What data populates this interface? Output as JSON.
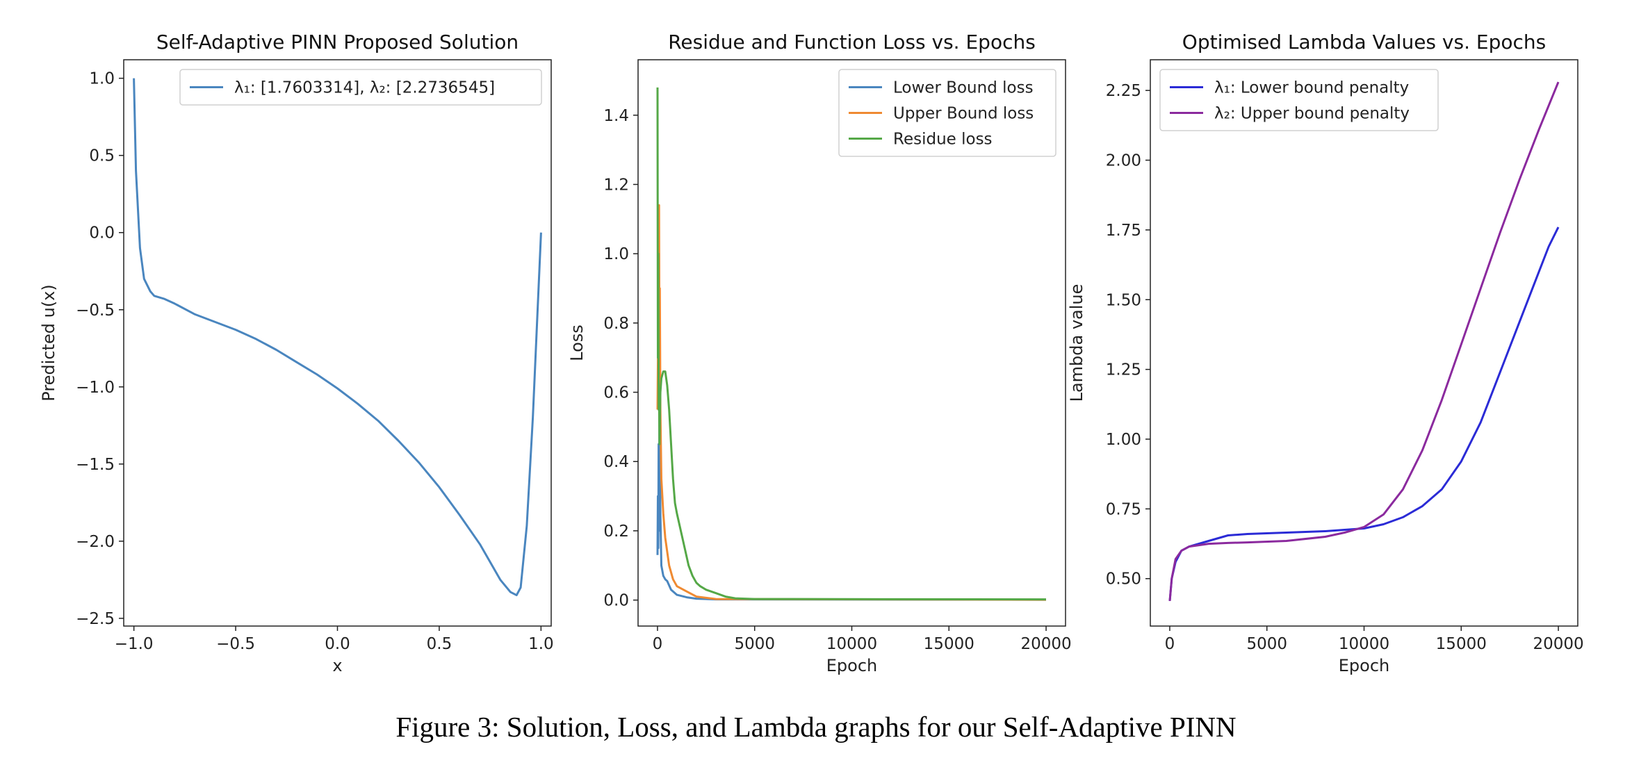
{
  "caption": "Figure 3:  Solution, Loss, and Lambda  graphs for our Self-Adaptive PINN",
  "chart_data": [
    {
      "type": "line",
      "title": "Self-Adaptive PINN Proposed Solution",
      "xlabel": "x",
      "ylabel": "Predicted u(x)",
      "xlim": [
        -1.05,
        1.05
      ],
      "ylim": [
        -2.55,
        1.12
      ],
      "xticks": [
        -1.0,
        -0.5,
        0.0,
        0.5,
        1.0
      ],
      "xtick_labels": [
        "−1.0",
        "−0.5",
        "0.0",
        "0.5",
        "1.0"
      ],
      "yticks": [
        1.0,
        0.5,
        0.0,
        -0.5,
        -1.0,
        -1.5,
        -2.0,
        -2.5
      ],
      "ytick_labels": [
        "1.0",
        "0.5",
        "0.0",
        "−0.5",
        "−1.0",
        "−1.5",
        "−2.0",
        "−2.5"
      ],
      "legend_position": "top-right",
      "series": [
        {
          "name": "λ₁: [1.7603314], λ₂: [2.2736545]",
          "color": "#4a86bf",
          "x": [
            -1.0,
            -0.99,
            -0.97,
            -0.95,
            -0.92,
            -0.9,
            -0.85,
            -0.8,
            -0.7,
            -0.6,
            -0.5,
            -0.4,
            -0.3,
            -0.2,
            -0.1,
            0.0,
            0.1,
            0.2,
            0.3,
            0.4,
            0.5,
            0.6,
            0.7,
            0.8,
            0.85,
            0.88,
            0.9,
            0.93,
            0.96,
            0.98,
            1.0
          ],
          "y": [
            1.0,
            0.4,
            -0.1,
            -0.3,
            -0.38,
            -0.41,
            -0.43,
            -0.46,
            -0.53,
            -0.58,
            -0.63,
            -0.69,
            -0.76,
            -0.84,
            -0.92,
            -1.01,
            -1.11,
            -1.22,
            -1.35,
            -1.49,
            -1.65,
            -1.83,
            -2.02,
            -2.25,
            -2.33,
            -2.35,
            -2.3,
            -1.9,
            -1.2,
            -0.6,
            0.0
          ]
        }
      ]
    },
    {
      "type": "line",
      "title": "Residue and Function Loss vs. Epochs",
      "xlabel": "Epoch",
      "ylabel": "Loss",
      "xlim": [
        -1000,
        21000
      ],
      "ylim": [
        -0.075,
        1.56
      ],
      "xticks": [
        0,
        5000,
        10000,
        15000,
        20000
      ],
      "xtick_labels": [
        "0",
        "5000",
        "10000",
        "15000",
        "20000"
      ],
      "yticks": [
        0.0,
        0.2,
        0.4,
        0.6,
        0.8,
        1.0,
        1.2,
        1.4
      ],
      "ytick_labels": [
        "0.0",
        "0.2",
        "0.4",
        "0.6",
        "0.8",
        "1.0",
        "1.2",
        "1.4"
      ],
      "legend_position": "top-right",
      "series": [
        {
          "name": "Lower Bound loss",
          "color": "#4a86bf",
          "x": [
            0,
            20,
            40,
            60,
            80,
            100,
            150,
            200,
            300,
            400,
            500,
            700,
            1000,
            1500,
            2000,
            3000,
            20000
          ],
          "y": [
            0.13,
            0.3,
            0.15,
            0.45,
            0.2,
            0.55,
            0.25,
            0.1,
            0.07,
            0.06,
            0.055,
            0.03,
            0.015,
            0.008,
            0.004,
            0.002,
            0.001
          ]
        },
        {
          "name": "Upper Bound loss",
          "color": "#ef8a32",
          "x": [
            0,
            50,
            80,
            100,
            120,
            150,
            200,
            300,
            400,
            600,
            800,
            1000,
            1500,
            2000,
            3000,
            20000
          ],
          "y": [
            0.55,
            0.9,
            1.14,
            0.7,
            0.9,
            0.55,
            0.35,
            0.25,
            0.18,
            0.1,
            0.06,
            0.04,
            0.025,
            0.01,
            0.003,
            0.001
          ]
        },
        {
          "name": "Residue loss",
          "color": "#55a847",
          "x": [
            0,
            20,
            40,
            60,
            80,
            100,
            150,
            200,
            300,
            400,
            500,
            600,
            700,
            800,
            900,
            1000,
            1200,
            1400,
            1600,
            1800,
            2000,
            2200,
            2500,
            3000,
            3500,
            4000,
            5000,
            20000
          ],
          "y": [
            1.48,
            0.7,
            1.0,
            0.55,
            0.6,
            0.45,
            0.6,
            0.64,
            0.66,
            0.66,
            0.62,
            0.55,
            0.45,
            0.35,
            0.28,
            0.25,
            0.2,
            0.15,
            0.1,
            0.07,
            0.05,
            0.04,
            0.03,
            0.02,
            0.01,
            0.005,
            0.003,
            0.002
          ]
        }
      ]
    },
    {
      "type": "line",
      "title": "Optimised Lambda Values vs. Epochs",
      "xlabel": "Epoch",
      "ylabel": "Lambda value",
      "xlim": [
        -1000,
        21000
      ],
      "ylim": [
        0.33,
        2.36
      ],
      "xticks": [
        0,
        5000,
        10000,
        15000,
        20000
      ],
      "xtick_labels": [
        "0",
        "5000",
        "10000",
        "15000",
        "20000"
      ],
      "yticks": [
        0.5,
        0.75,
        1.0,
        1.25,
        1.5,
        1.75,
        2.0,
        2.25
      ],
      "ytick_labels": [
        "0.50",
        "0.75",
        "1.00",
        "1.25",
        "1.50",
        "1.75",
        "2.00",
        "2.25"
      ],
      "legend_position": "top-left",
      "series": [
        {
          "name": "λ₁: Lower bound penalty",
          "color": "#2b2bd6",
          "x": [
            0,
            100,
            300,
            600,
            1000,
            2000,
            3000,
            4000,
            6000,
            8000,
            10000,
            11000,
            12000,
            13000,
            14000,
            15000,
            16000,
            17000,
            18000,
            19000,
            19500,
            20000
          ],
          "y": [
            0.42,
            0.5,
            0.56,
            0.6,
            0.615,
            0.635,
            0.655,
            0.66,
            0.665,
            0.67,
            0.68,
            0.695,
            0.72,
            0.76,
            0.82,
            0.92,
            1.06,
            1.24,
            1.42,
            1.6,
            1.69,
            1.76
          ]
        },
        {
          "name": "λ₂: Upper bound penalty",
          "color": "#8b2a9e",
          "x": [
            0,
            100,
            300,
            600,
            1000,
            2000,
            3000,
            4000,
            6000,
            8000,
            9000,
            10000,
            11000,
            12000,
            13000,
            14000,
            15000,
            16000,
            17000,
            18000,
            19000,
            20000
          ],
          "y": [
            0.42,
            0.5,
            0.57,
            0.6,
            0.615,
            0.625,
            0.628,
            0.63,
            0.635,
            0.65,
            0.665,
            0.685,
            0.73,
            0.82,
            0.96,
            1.14,
            1.34,
            1.54,
            1.74,
            1.93,
            2.11,
            2.28
          ]
        }
      ]
    }
  ]
}
